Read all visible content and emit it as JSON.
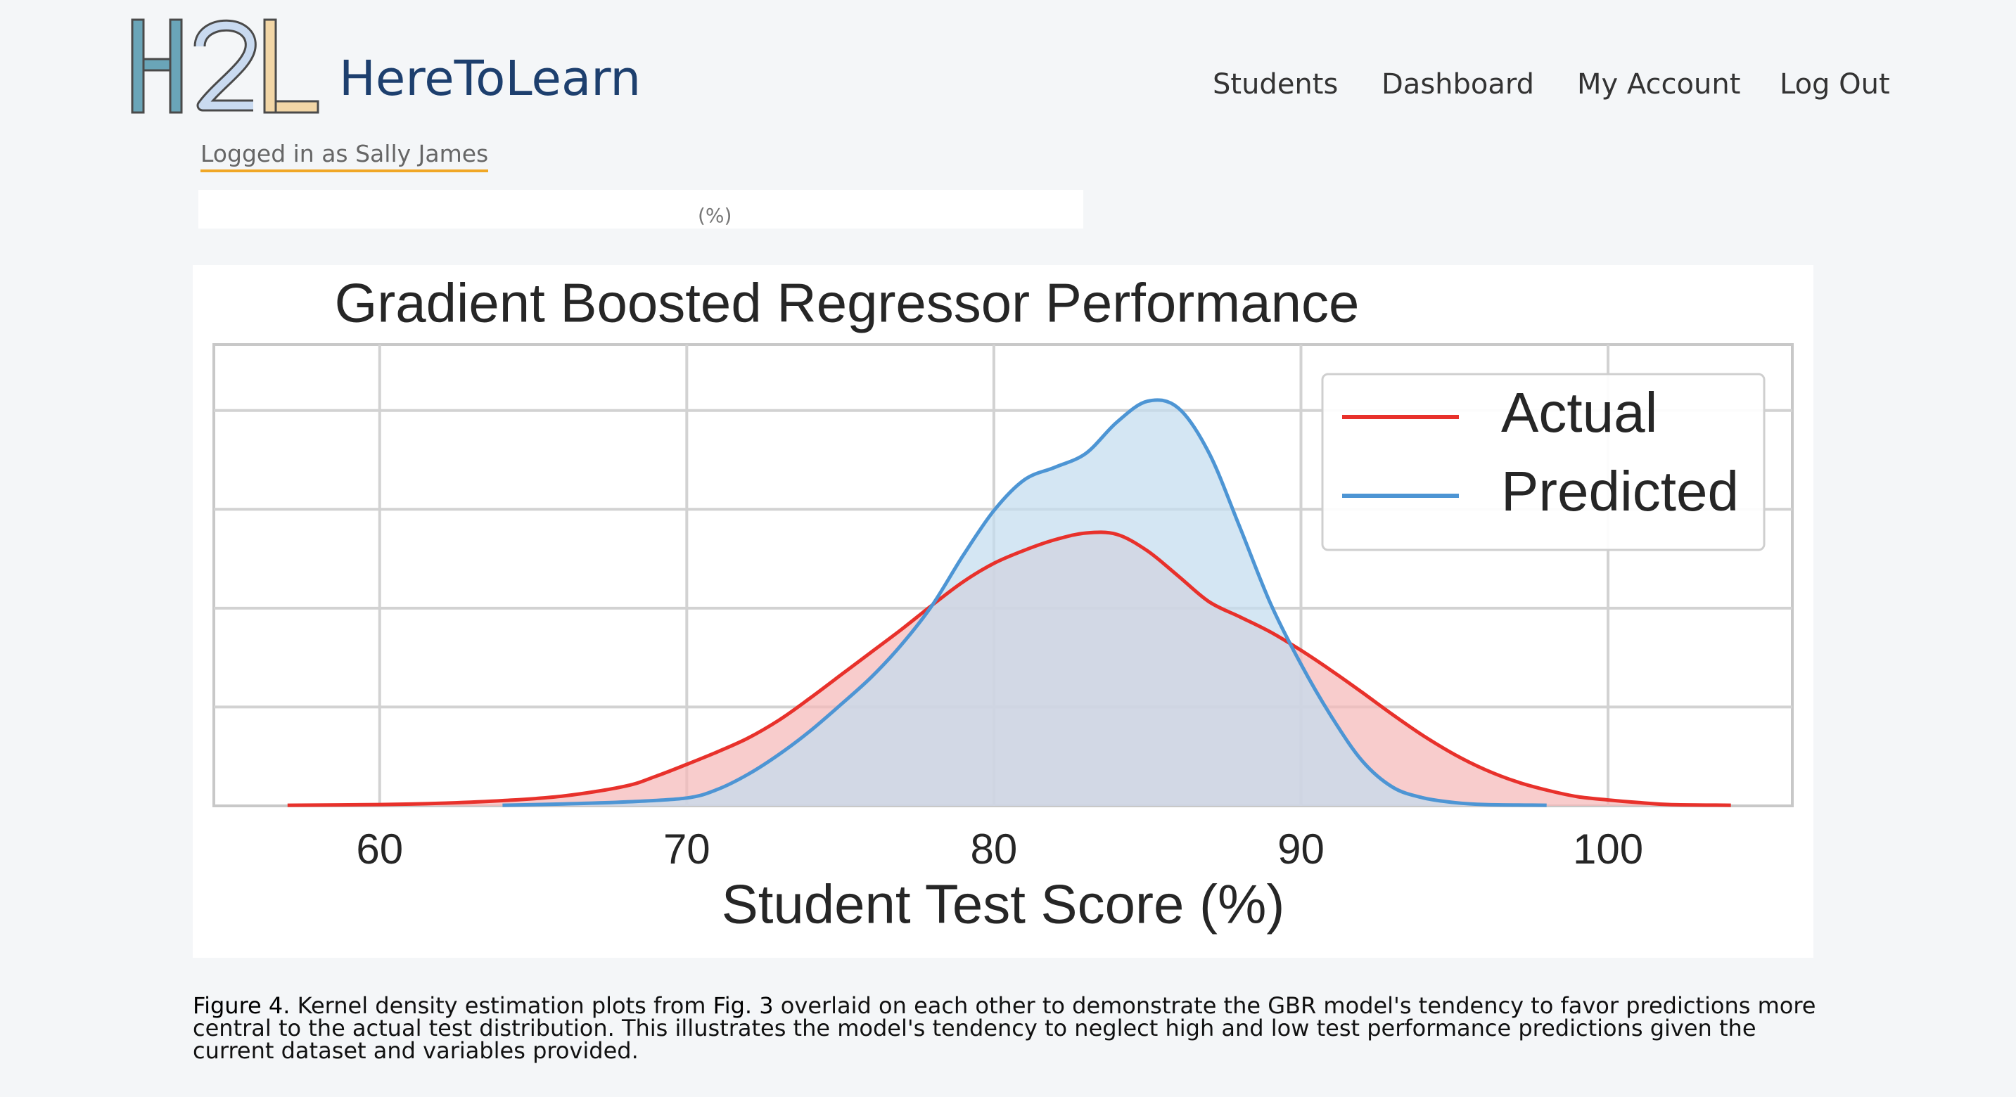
{
  "header": {
    "logo_text": "H2L",
    "brand": "HereToLearn",
    "nav": [
      "Students",
      "Dashboard",
      "My Account",
      "Log Out"
    ],
    "logged_in": "Logged in as Sally James"
  },
  "previous_card_fragment": "(%)",
  "chart_data": {
    "type": "area",
    "title": "Gradient Boosted Regressor Performance",
    "xlabel": "Student Test Score (%)",
    "ylabel": "",
    "xlim": [
      54.6,
      106
    ],
    "ylim": [
      0,
      0.07
    ],
    "x_ticks": [
      60,
      70,
      80,
      90,
      100
    ],
    "x_tick_labels": [
      "60",
      "70",
      "80",
      "90",
      "100"
    ],
    "y_gridlines": [
      0.015,
      0.03,
      0.045,
      0.06
    ],
    "legend_position": "top-right",
    "series": [
      {
        "name": "Actual",
        "color": "#e8312b",
        "fill": "#f5b8b8",
        "x": [
          57,
          60,
          62,
          64,
          66,
          68,
          69,
          70,
          71,
          72,
          73,
          74,
          75,
          76,
          77,
          78,
          79,
          80,
          81,
          82,
          83,
          84,
          85,
          86,
          87,
          88,
          89,
          90,
          91,
          92,
          93,
          94,
          95,
          96,
          97,
          98,
          99,
          100,
          101,
          102,
          104
        ],
        "y": [
          0.0001,
          0.0002,
          0.0004,
          0.0008,
          0.0015,
          0.003,
          0.0045,
          0.0063,
          0.0082,
          0.0103,
          0.013,
          0.0163,
          0.0198,
          0.0233,
          0.0268,
          0.0305,
          0.034,
          0.0368,
          0.0388,
          0.0404,
          0.0414,
          0.0412,
          0.0387,
          0.0349,
          0.031,
          0.0287,
          0.0264,
          0.0236,
          0.0205,
          0.0172,
          0.0138,
          0.0106,
          0.0078,
          0.0055,
          0.0037,
          0.0024,
          0.0014,
          0.0009,
          0.0005,
          0.0002,
          0.0001
        ]
      },
      {
        "name": "Predicted",
        "color": "#4d95d4",
        "fill": "#c4dcef",
        "x": [
          64,
          66,
          68,
          70,
          71,
          72,
          73,
          74,
          75,
          76,
          77,
          78,
          79,
          80,
          81,
          82,
          83,
          84,
          85,
          86,
          87,
          88,
          89,
          90,
          91,
          92,
          93,
          94,
          95,
          96,
          98
        ],
        "y": [
          0.0001,
          0.0003,
          0.0006,
          0.0012,
          0.0025,
          0.0048,
          0.0078,
          0.0113,
          0.0153,
          0.0195,
          0.0245,
          0.0305,
          0.038,
          0.0448,
          0.0495,
          0.0514,
          0.0535,
          0.0582,
          0.0614,
          0.0604,
          0.0536,
          0.0424,
          0.0308,
          0.0215,
          0.0135,
          0.0068,
          0.0028,
          0.0012,
          0.0005,
          0.0002,
          0.0001
        ]
      }
    ]
  },
  "caption": {
    "label": "Figure 4.",
    "part1": "Kernel density estimation plots from",
    "ref": "Fig. 3",
    "part2": "overlaid on each other to demonstrate the GBR model's tendency to favor predictions more central to the actual test distribution. This illustrates the model's tendency to neglect high and low test performance predictions given the current dataset and variables provided."
  }
}
